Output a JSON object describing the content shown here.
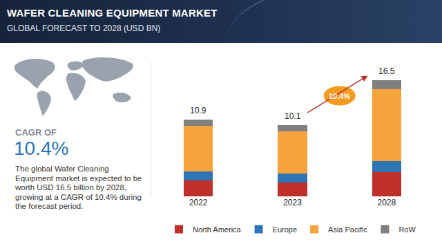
{
  "header": {
    "title": "WAFER CLEANING EQUIPMENT MARKET",
    "subtitle": "GLOBAL FORECAST TO 2028 (USD BN)"
  },
  "side_panel": {
    "cagr_heading": "CAGR OF",
    "cagr_value": "10.4%",
    "description": "The global Wafer Cleaning Equipment market is expected to be worth USD 16.5 billion by 2028, growing at a CAGR of 10.4% during the forecast period."
  },
  "chart_data": {
    "type": "bar",
    "stacked": true,
    "categories": [
      "2022",
      "2023",
      "2028"
    ],
    "series": [
      {
        "name": "North America",
        "color": "#c0302b",
        "values": [
          2.3,
          2.0,
          3.4
        ]
      },
      {
        "name": "Europe",
        "color": "#2e75b6",
        "values": [
          1.25,
          1.25,
          1.6
        ]
      },
      {
        "name": "Asia Pacific",
        "color": "#f7a33c",
        "values": [
          6.45,
          6.0,
          10.2
        ]
      },
      {
        "name": "RoW",
        "color": "#808080",
        "values": [
          0.9,
          0.85,
          1.3
        ]
      }
    ],
    "totals": [
      10.9,
      10.1,
      16.5
    ],
    "annotations": [
      {
        "text": "10.4%"
      }
    ],
    "ylim": [
      0,
      19
    ],
    "grid": false,
    "legend": "bottom",
    "tick_labels": "x"
  }
}
